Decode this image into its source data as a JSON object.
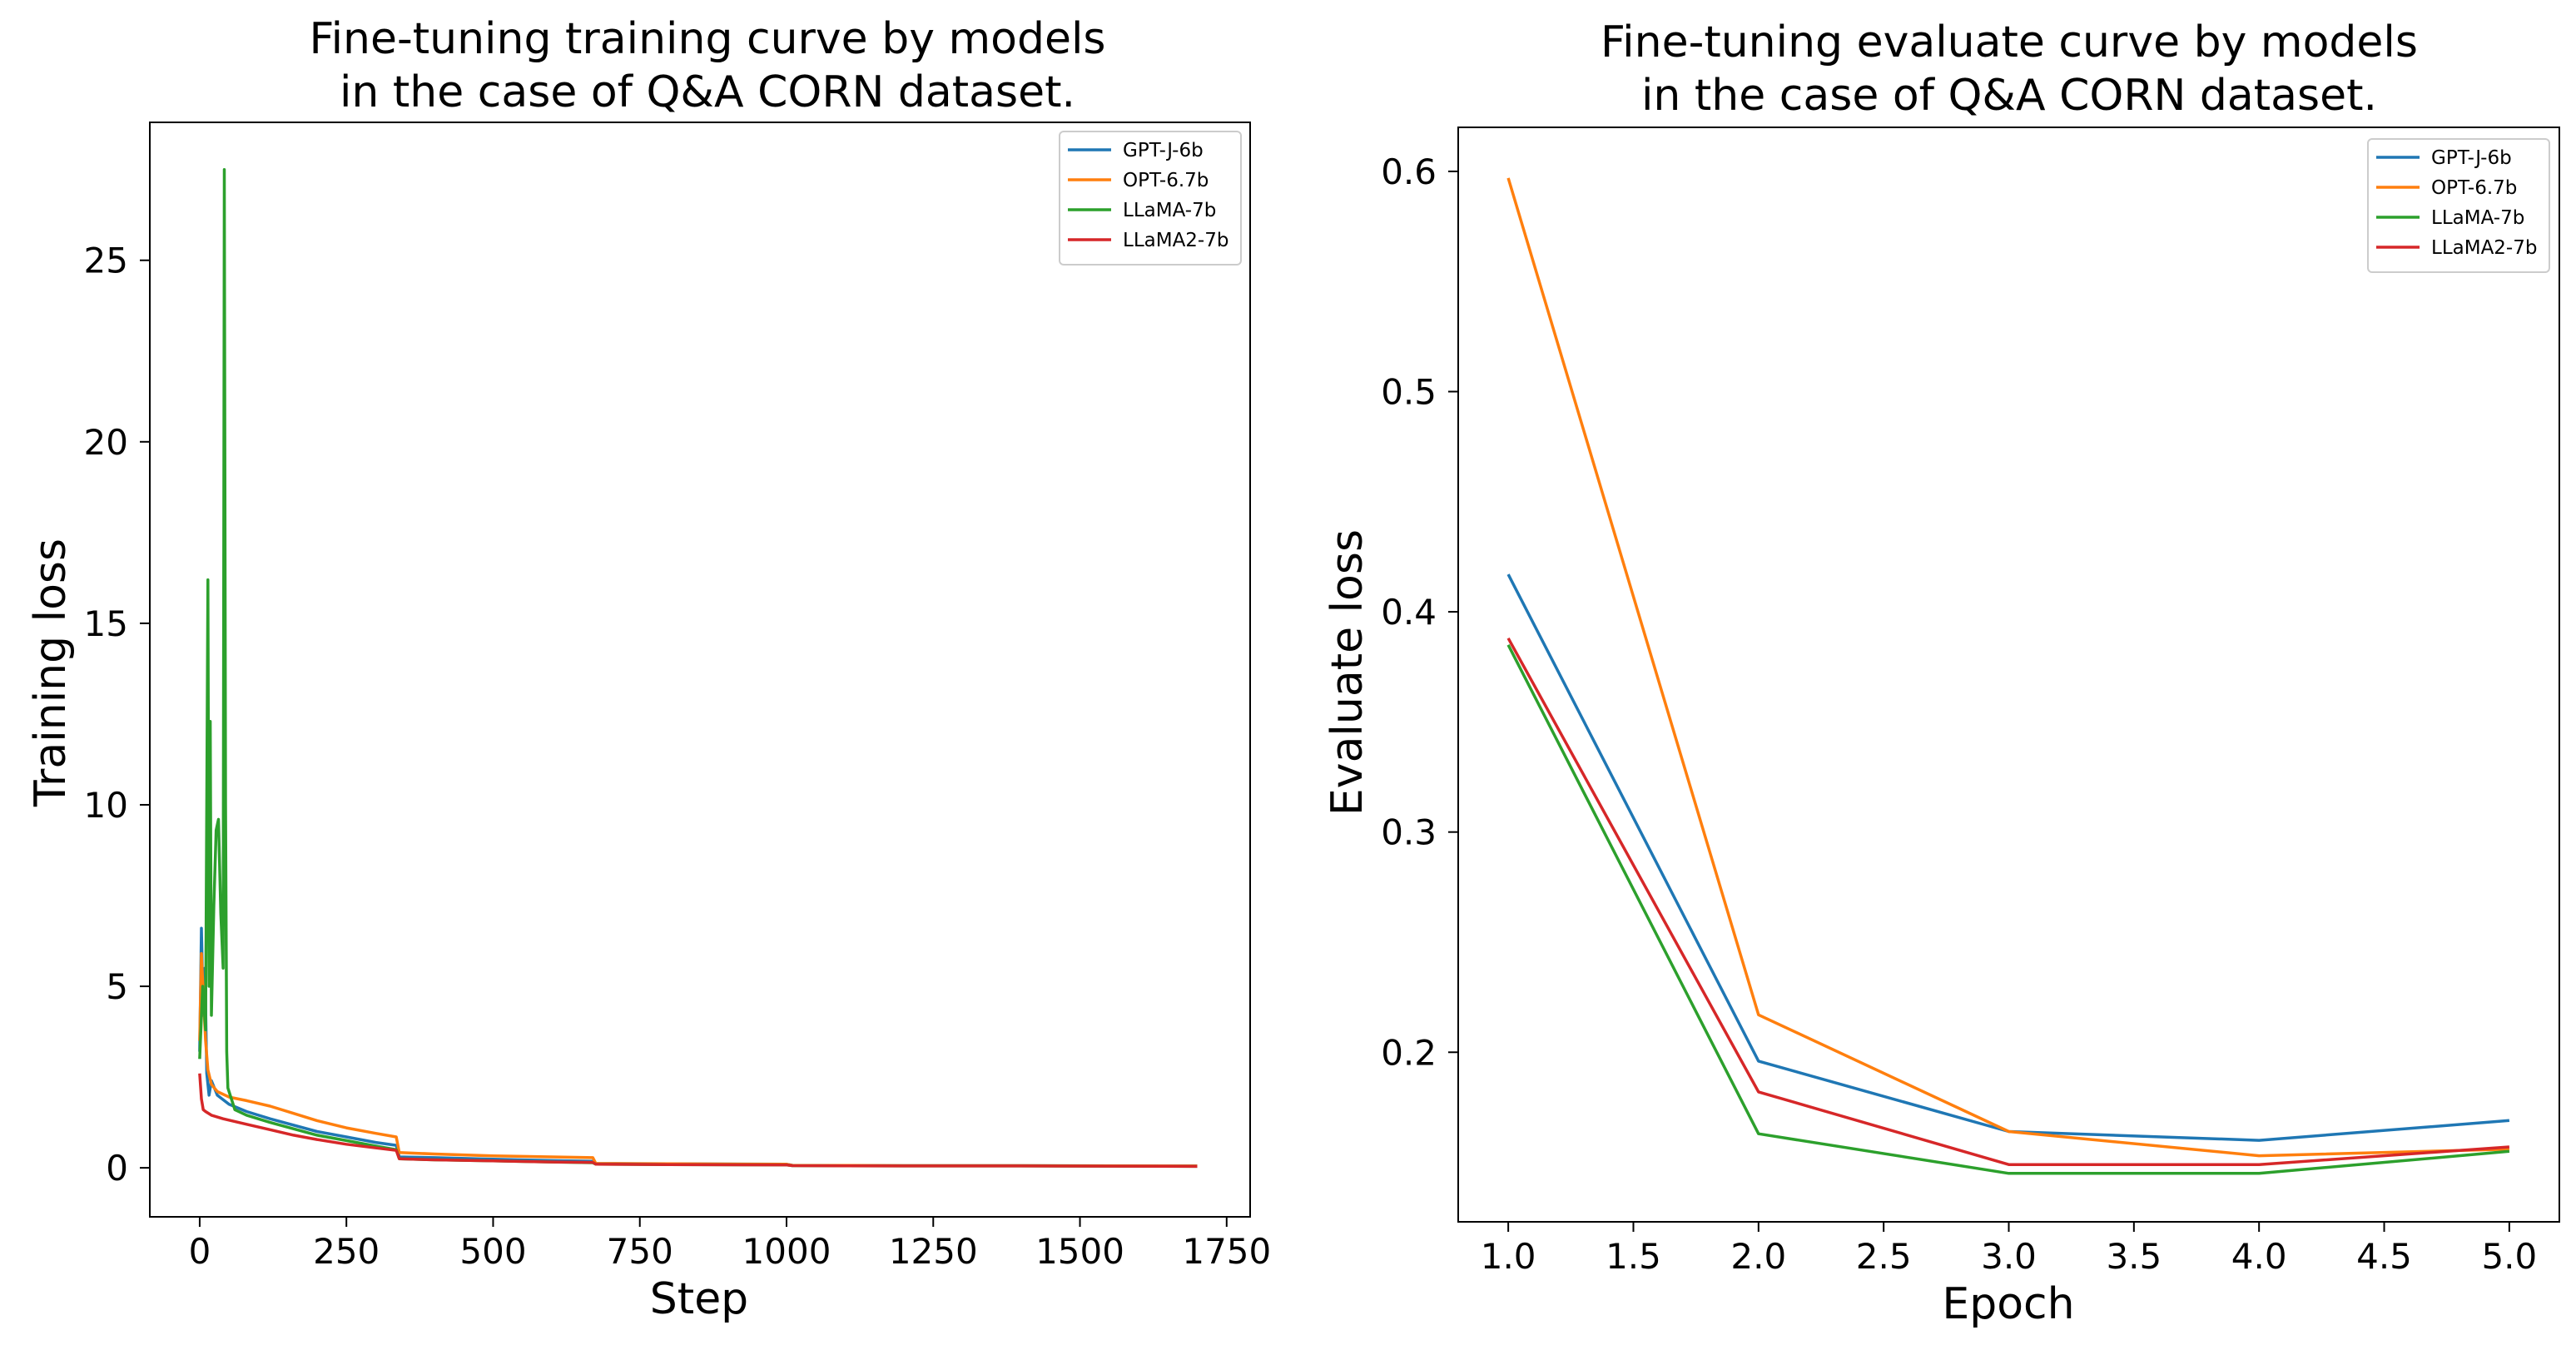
{
  "chart_data": [
    {
      "type": "line",
      "title": [
        "Fine-tuning training curve by models",
        "in the case of Q&A CORN dataset."
      ],
      "xlabel": "Step",
      "ylabel": "Training loss",
      "xlim": [
        -85,
        1790
      ],
      "ylim": [
        -1.35,
        28.8
      ],
      "xticks": [
        0,
        250,
        500,
        750,
        1000,
        1250,
        1500,
        1750
      ],
      "xtick_labels": [
        "0",
        "250",
        "500",
        "750",
        "1000",
        "1250",
        "1500",
        "1750"
      ],
      "yticks": [
        0,
        5,
        10,
        15,
        20,
        25
      ],
      "ytick_labels": [
        "0",
        "5",
        "10",
        "15",
        "20",
        "25"
      ],
      "legend_position": "top-right",
      "series": [
        {
          "name": "GPT-J-6b",
          "color": "#1f77b4",
          "x": [
            0,
            3,
            6,
            9,
            12,
            16,
            20,
            30,
            50,
            80,
            120,
            200,
            250,
            300,
            335,
            340,
            400,
            500,
            600,
            670,
            675,
            800,
            1000,
            1010,
            1200,
            1400,
            1700
          ],
          "y": [
            3.2,
            6.6,
            4.2,
            5.5,
            2.6,
            2.0,
            2.4,
            2.0,
            1.75,
            1.55,
            1.35,
            1.0,
            0.85,
            0.7,
            0.62,
            0.3,
            0.28,
            0.24,
            0.2,
            0.18,
            0.12,
            0.11,
            0.1,
            0.07,
            0.06,
            0.06,
            0.05
          ]
        },
        {
          "name": "OPT-6.7b",
          "color": "#ff7f0e",
          "x": [
            0,
            3,
            6,
            10,
            14,
            20,
            30,
            50,
            80,
            120,
            160,
            200,
            250,
            300,
            335,
            340,
            400,
            500,
            600,
            670,
            675,
            800,
            1000,
            1010,
            1200,
            1400,
            1700
          ],
          "y": [
            3.5,
            5.9,
            4.8,
            3.5,
            2.7,
            2.3,
            2.1,
            1.95,
            1.85,
            1.7,
            1.5,
            1.3,
            1.1,
            0.95,
            0.85,
            0.42,
            0.38,
            0.33,
            0.3,
            0.28,
            0.12,
            0.11,
            0.1,
            0.07,
            0.06,
            0.06,
            0.05
          ]
        },
        {
          "name": "LLaMA-7b",
          "color": "#2ca02c",
          "x": [
            0,
            5,
            10,
            14,
            16,
            18,
            20,
            24,
            28,
            32,
            36,
            40,
            42,
            44,
            46,
            48,
            60,
            80,
            120,
            200,
            250,
            300,
            335,
            340,
            400,
            500,
            600,
            670,
            675,
            800,
            1000,
            1010,
            1200,
            1400,
            1700
          ],
          "y": [
            3.0,
            5.0,
            3.8,
            16.2,
            5.0,
            12.3,
            4.2,
            7.2,
            9.3,
            9.6,
            7.0,
            5.5,
            27.5,
            10.0,
            3.2,
            2.2,
            1.6,
            1.45,
            1.25,
            0.9,
            0.75,
            0.6,
            0.5,
            0.25,
            0.22,
            0.19,
            0.16,
            0.14,
            0.1,
            0.09,
            0.08,
            0.06,
            0.05,
            0.05,
            0.04
          ]
        },
        {
          "name": "LLaMA2-7b",
          "color": "#d62728",
          "x": [
            0,
            3,
            6,
            10,
            20,
            40,
            80,
            120,
            160,
            200,
            250,
            300,
            335,
            340,
            400,
            500,
            600,
            670,
            675,
            800,
            1000,
            1010,
            1200,
            1400,
            1700
          ],
          "y": [
            2.6,
            1.9,
            1.6,
            1.55,
            1.45,
            1.35,
            1.2,
            1.05,
            0.9,
            0.78,
            0.65,
            0.55,
            0.48,
            0.25,
            0.22,
            0.19,
            0.16,
            0.15,
            0.1,
            0.09,
            0.08,
            0.06,
            0.05,
            0.05,
            0.04
          ]
        }
      ]
    },
    {
      "type": "line",
      "title": [
        "Fine-tuning evaluate curve by models",
        "in the case of Q&A CORN dataset."
      ],
      "xlabel": "Epoch",
      "ylabel": "Evaluate loss",
      "xlim": [
        0.8,
        5.2
      ],
      "ylim": [
        0.123,
        0.62
      ],
      "xticks": [
        1.0,
        1.5,
        2.0,
        2.5,
        3.0,
        3.5,
        4.0,
        4.5,
        5.0
      ],
      "xtick_labels": [
        "1.0",
        "1.5",
        "2.0",
        "2.5",
        "3.0",
        "3.5",
        "4.0",
        "4.5",
        "5.0"
      ],
      "yticks": [
        0.2,
        0.3,
        0.4,
        0.5,
        0.6
      ],
      "ytick_labels": [
        "0.2",
        "0.3",
        "0.4",
        "0.5",
        "0.6"
      ],
      "legend_position": "top-right",
      "series": [
        {
          "name": "GPT-J-6b",
          "color": "#1f77b4",
          "x": [
            1,
            2,
            3,
            4,
            5
          ],
          "y": [
            0.417,
            0.196,
            0.164,
            0.16,
            0.169
          ]
        },
        {
          "name": "OPT-6.7b",
          "color": "#ff7f0e",
          "x": [
            1,
            2,
            3,
            4,
            5
          ],
          "y": [
            0.597,
            0.217,
            0.164,
            0.153,
            0.156
          ]
        },
        {
          "name": "LLaMA-7b",
          "color": "#2ca02c",
          "x": [
            1,
            2,
            3,
            4,
            5
          ],
          "y": [
            0.385,
            0.163,
            0.145,
            0.145,
            0.155
          ]
        },
        {
          "name": "LLaMA2-7b",
          "color": "#d62728",
          "x": [
            1,
            2,
            3,
            4,
            5
          ],
          "y": [
            0.388,
            0.182,
            0.149,
            0.149,
            0.157
          ]
        }
      ]
    }
  ]
}
